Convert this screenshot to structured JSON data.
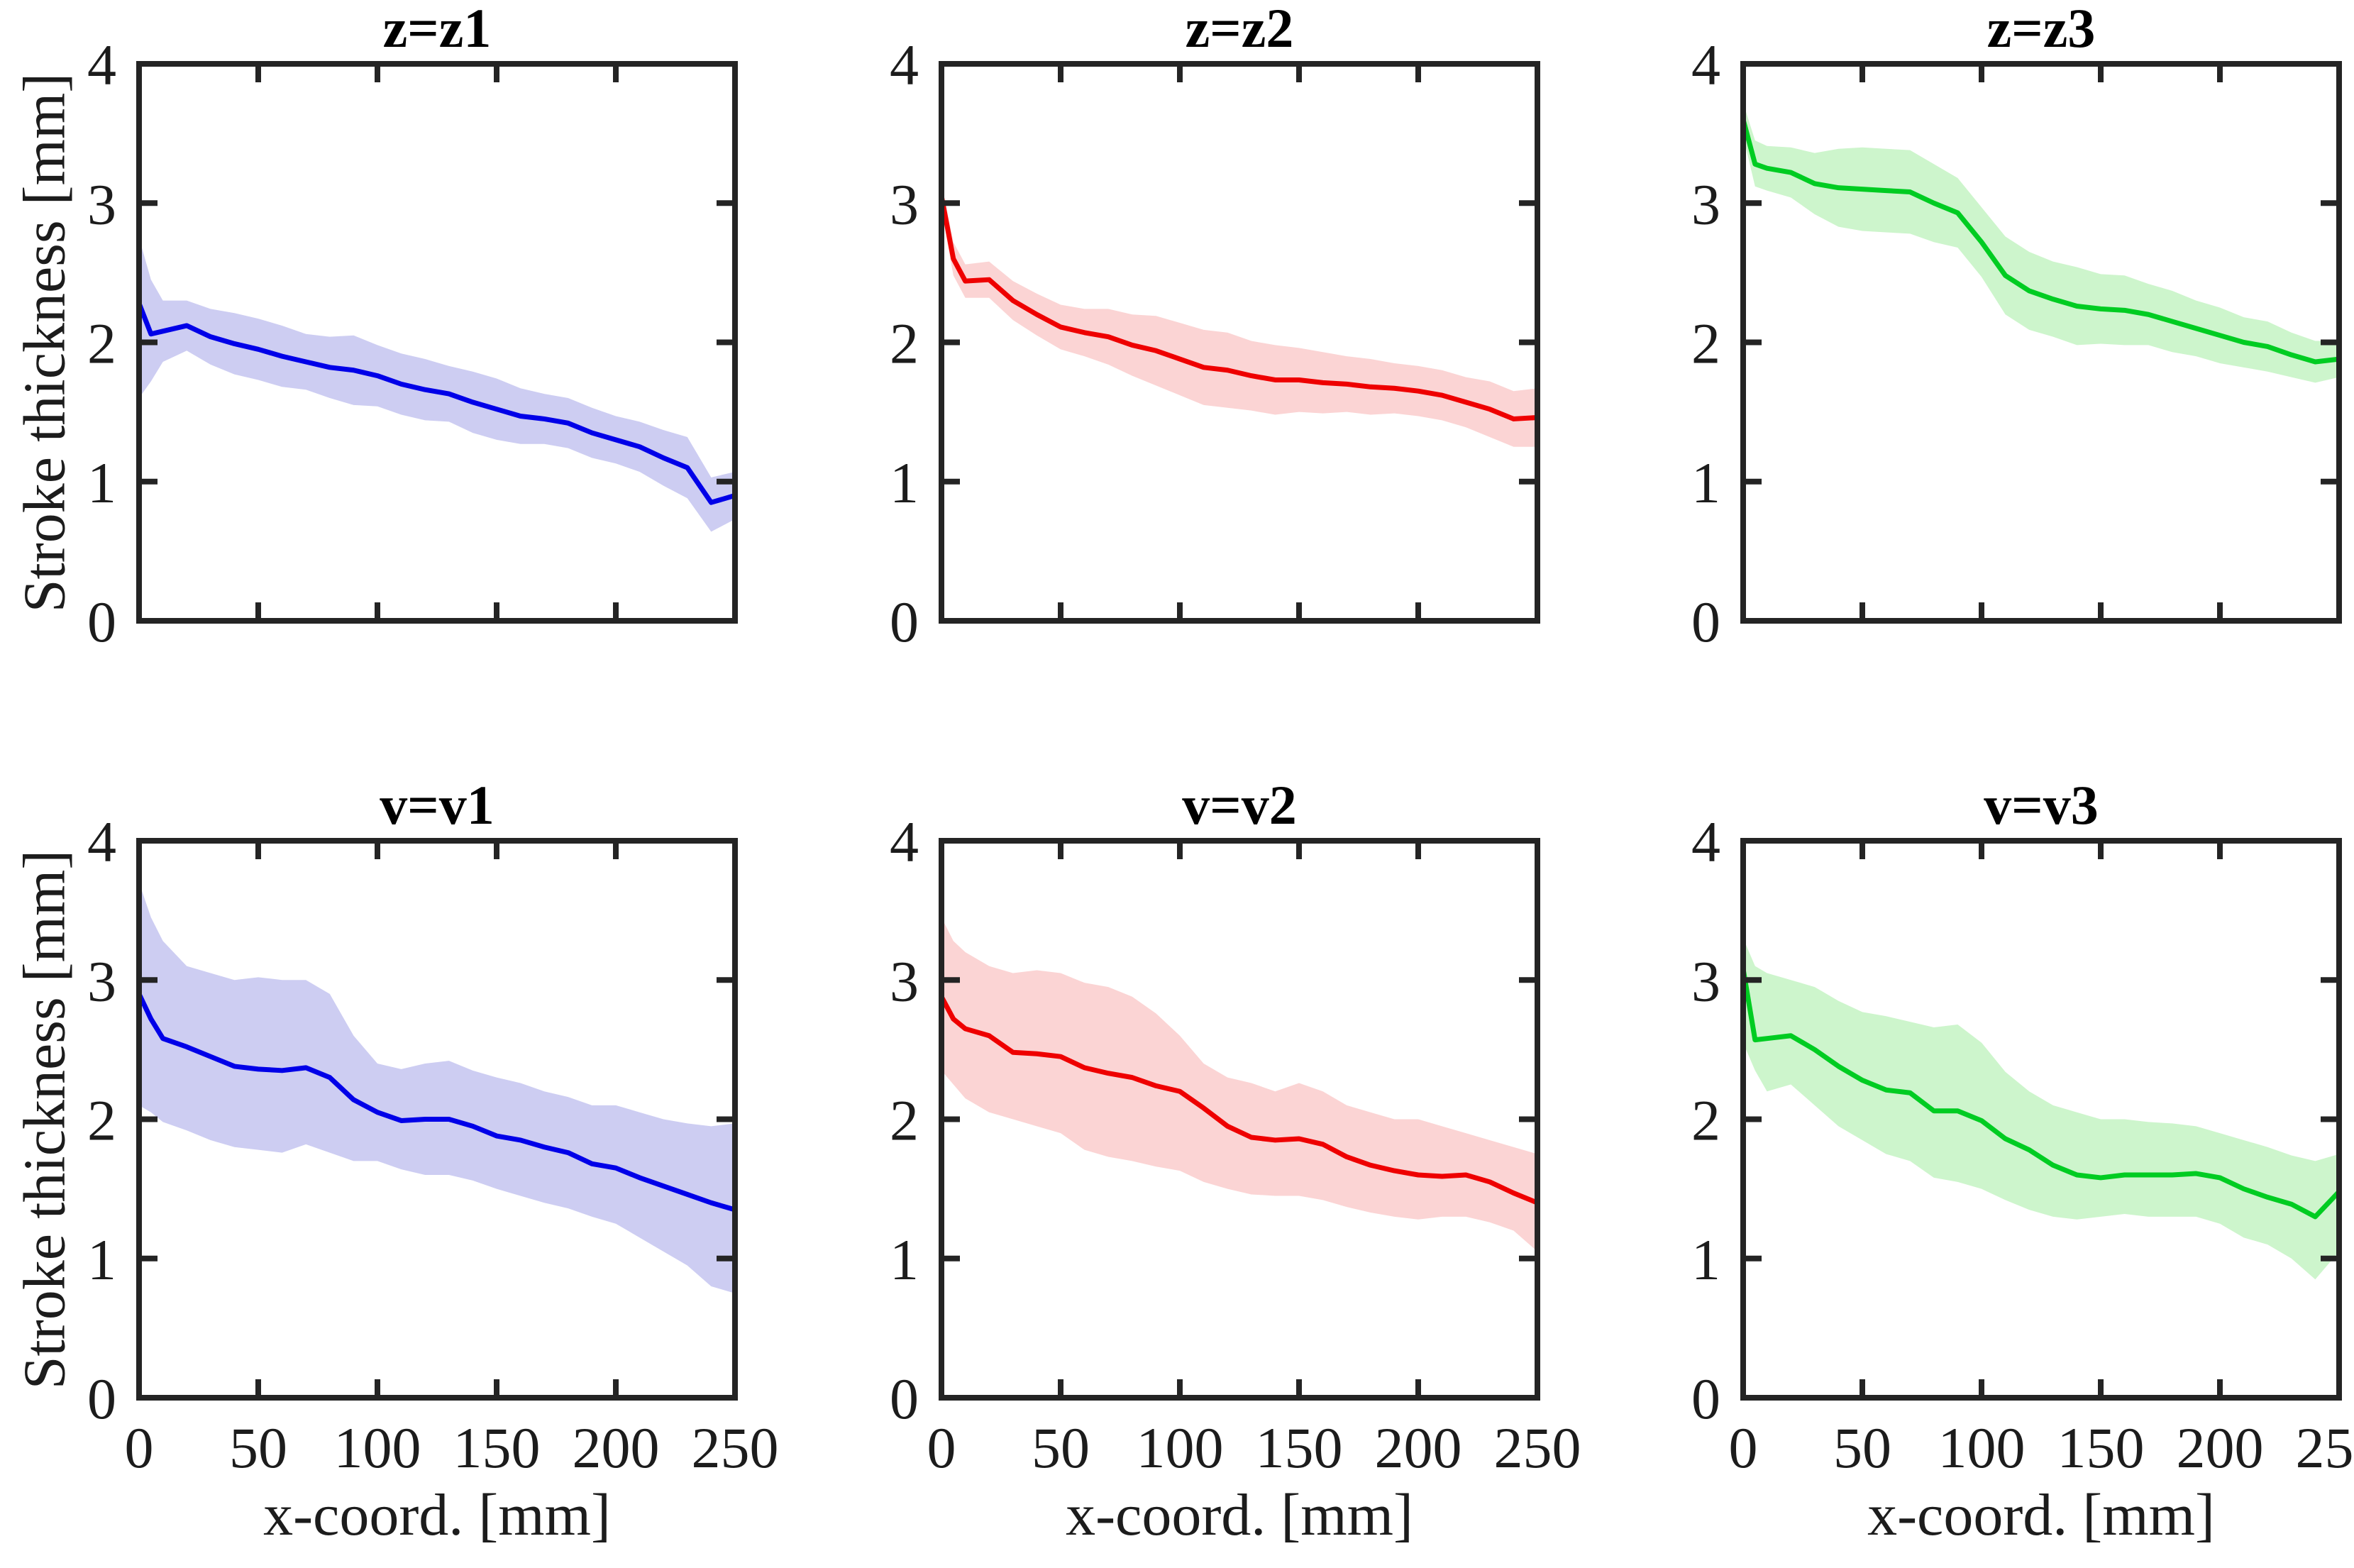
{
  "figure": {
    "background": "#ffffff",
    "axis_color": "#242424",
    "text_color": "#1c1c1c",
    "ylabel": "Stroke thickness [mm]",
    "xlabel": "x-coord. [mm]",
    "x_ticks": [
      0,
      50,
      100,
      150,
      200,
      250
    ],
    "y_ticks": [
      0,
      1,
      2,
      3,
      4
    ]
  },
  "chart_data": [
    {
      "type": "line",
      "title": "z=z1",
      "xlabel": "x-coord. [mm]",
      "ylabel": "Stroke thickness [mm]",
      "xlim": [
        0,
        250
      ],
      "ylim": [
        0,
        4
      ],
      "grid": false,
      "legend": "none",
      "color": "#0000E8",
      "band_color": "#CDCDF2",
      "x": [
        0,
        5,
        10,
        20,
        30,
        40,
        50,
        60,
        70,
        80,
        90,
        100,
        110,
        120,
        130,
        140,
        150,
        160,
        170,
        180,
        190,
        200,
        210,
        220,
        230,
        240,
        250
      ],
      "mean": [
        2.28,
        2.06,
        2.08,
        2.12,
        2.04,
        1.99,
        1.95,
        1.9,
        1.86,
        1.82,
        1.8,
        1.76,
        1.7,
        1.66,
        1.63,
        1.57,
        1.52,
        1.47,
        1.45,
        1.42,
        1.35,
        1.3,
        1.25,
        1.17,
        1.1,
        0.85,
        0.9
      ],
      "band_upper": [
        2.75,
        2.45,
        2.3,
        2.3,
        2.24,
        2.21,
        2.17,
        2.12,
        2.06,
        2.04,
        2.05,
        1.98,
        1.92,
        1.88,
        1.83,
        1.79,
        1.74,
        1.67,
        1.63,
        1.6,
        1.53,
        1.47,
        1.43,
        1.37,
        1.32,
        1.03,
        1.07
      ],
      "band_lower": [
        1.6,
        1.72,
        1.86,
        1.94,
        1.84,
        1.77,
        1.73,
        1.68,
        1.66,
        1.6,
        1.55,
        1.54,
        1.48,
        1.44,
        1.43,
        1.35,
        1.3,
        1.27,
        1.27,
        1.24,
        1.17,
        1.13,
        1.07,
        0.97,
        0.88,
        0.64,
        0.73
      ]
    },
    {
      "type": "line",
      "title": "z=z2",
      "xlabel": "x-coord. [mm]",
      "ylabel": "Stroke thickness [mm]",
      "xlim": [
        0,
        250
      ],
      "ylim": [
        0,
        4
      ],
      "grid": false,
      "legend": "none",
      "color": "#EE0000",
      "band_color": "#FBD4D4",
      "x": [
        0,
        5,
        10,
        20,
        30,
        40,
        50,
        60,
        70,
        80,
        90,
        100,
        110,
        120,
        130,
        140,
        150,
        160,
        170,
        180,
        190,
        200,
        210,
        220,
        230,
        240,
        250
      ],
      "mean": [
        3.05,
        2.6,
        2.44,
        2.45,
        2.3,
        2.2,
        2.11,
        2.07,
        2.04,
        1.98,
        1.94,
        1.88,
        1.82,
        1.8,
        1.76,
        1.73,
        1.73,
        1.71,
        1.7,
        1.68,
        1.67,
        1.65,
        1.62,
        1.57,
        1.52,
        1.45,
        1.46
      ],
      "band_upper": [
        3.15,
        2.72,
        2.56,
        2.58,
        2.44,
        2.35,
        2.27,
        2.24,
        2.24,
        2.2,
        2.19,
        2.14,
        2.09,
        2.07,
        2.01,
        1.98,
        1.96,
        1.93,
        1.9,
        1.88,
        1.85,
        1.83,
        1.8,
        1.75,
        1.72,
        1.65,
        1.67
      ],
      "band_lower": [
        2.95,
        2.48,
        2.32,
        2.32,
        2.16,
        2.05,
        1.95,
        1.9,
        1.84,
        1.76,
        1.69,
        1.62,
        1.55,
        1.53,
        1.51,
        1.48,
        1.5,
        1.49,
        1.5,
        1.48,
        1.49,
        1.47,
        1.44,
        1.39,
        1.32,
        1.25,
        1.25
      ]
    },
    {
      "type": "line",
      "title": "z=z3",
      "xlabel": "x-coord. [mm]",
      "ylabel": "Stroke thickness [mm]",
      "xlim": [
        0,
        250
      ],
      "ylim": [
        0,
        4
      ],
      "grid": false,
      "legend": "none",
      "color": "#00CC22",
      "band_color": "#CDF5CC",
      "x": [
        0,
        5,
        10,
        20,
        30,
        40,
        50,
        60,
        70,
        80,
        90,
        100,
        110,
        120,
        130,
        140,
        150,
        160,
        170,
        180,
        190,
        200,
        210,
        220,
        230,
        240,
        250
      ],
      "mean": [
        3.6,
        3.28,
        3.25,
        3.22,
        3.14,
        3.11,
        3.1,
        3.09,
        3.08,
        3.0,
        2.93,
        2.72,
        2.48,
        2.37,
        2.31,
        2.26,
        2.24,
        2.23,
        2.2,
        2.15,
        2.1,
        2.05,
        2.0,
        1.97,
        1.91,
        1.86,
        1.88
      ],
      "band_upper": [
        3.72,
        3.45,
        3.41,
        3.4,
        3.36,
        3.39,
        3.4,
        3.39,
        3.38,
        3.28,
        3.18,
        2.97,
        2.76,
        2.65,
        2.58,
        2.54,
        2.49,
        2.48,
        2.42,
        2.37,
        2.3,
        2.25,
        2.18,
        2.15,
        2.07,
        2.01,
        2.01
      ],
      "band_lower": [
        3.48,
        3.12,
        3.09,
        3.04,
        2.92,
        2.83,
        2.8,
        2.79,
        2.78,
        2.72,
        2.68,
        2.47,
        2.2,
        2.09,
        2.04,
        1.98,
        1.99,
        1.98,
        1.98,
        1.93,
        1.9,
        1.85,
        1.82,
        1.79,
        1.75,
        1.71,
        1.75
      ]
    },
    {
      "type": "line",
      "title": "v=v1",
      "xlabel": "x-coord. [mm]",
      "ylabel": "Stroke thickness [mm]",
      "xlim": [
        0,
        250
      ],
      "ylim": [
        0,
        4
      ],
      "grid": false,
      "legend": "none",
      "color": "#0000E8",
      "band_color": "#CDCDF2",
      "x": [
        0,
        5,
        10,
        20,
        30,
        40,
        50,
        60,
        70,
        80,
        90,
        100,
        110,
        120,
        130,
        140,
        150,
        160,
        170,
        180,
        190,
        200,
        210,
        220,
        230,
        240,
        250
      ],
      "mean": [
        2.9,
        2.72,
        2.58,
        2.52,
        2.45,
        2.38,
        2.36,
        2.35,
        2.37,
        2.3,
        2.14,
        2.05,
        1.99,
        2.0,
        2.0,
        1.95,
        1.88,
        1.85,
        1.8,
        1.76,
        1.68,
        1.65,
        1.58,
        1.52,
        1.46,
        1.4,
        1.35
      ],
      "band_upper": [
        3.7,
        3.45,
        3.28,
        3.1,
        3.05,
        3.0,
        3.02,
        3.0,
        3.0,
        2.9,
        2.6,
        2.4,
        2.36,
        2.4,
        2.42,
        2.35,
        2.3,
        2.26,
        2.2,
        2.16,
        2.1,
        2.1,
        2.05,
        2.0,
        1.97,
        1.95,
        1.97
      ],
      "band_lower": [
        2.1,
        2.05,
        1.98,
        1.92,
        1.85,
        1.8,
        1.78,
        1.76,
        1.82,
        1.76,
        1.7,
        1.7,
        1.64,
        1.6,
        1.6,
        1.56,
        1.5,
        1.45,
        1.4,
        1.36,
        1.3,
        1.25,
        1.15,
        1.05,
        0.95,
        0.8,
        0.75
      ]
    },
    {
      "type": "line",
      "title": "v=v2",
      "xlabel": "x-coord. [mm]",
      "ylabel": "Stroke thickness [mm]",
      "xlim": [
        0,
        250
      ],
      "ylim": [
        0,
        4
      ],
      "grid": false,
      "legend": "none",
      "color": "#EE0000",
      "band_color": "#FBD4D4",
      "x": [
        0,
        5,
        10,
        20,
        30,
        40,
        50,
        60,
        70,
        80,
        90,
        100,
        110,
        120,
        130,
        140,
        150,
        160,
        170,
        180,
        190,
        200,
        210,
        220,
        230,
        240,
        250
      ],
      "mean": [
        2.88,
        2.72,
        2.65,
        2.6,
        2.48,
        2.47,
        2.45,
        2.37,
        2.33,
        2.3,
        2.24,
        2.2,
        2.08,
        1.95,
        1.87,
        1.85,
        1.86,
        1.82,
        1.73,
        1.67,
        1.63,
        1.6,
        1.59,
        1.6,
        1.55,
        1.47,
        1.4
      ],
      "band_upper": [
        3.45,
        3.28,
        3.2,
        3.1,
        3.05,
        3.07,
        3.05,
        2.98,
        2.95,
        2.88,
        2.76,
        2.6,
        2.4,
        2.3,
        2.26,
        2.2,
        2.26,
        2.2,
        2.1,
        2.05,
        2.0,
        2.0,
        1.95,
        1.9,
        1.85,
        1.8,
        1.75
      ],
      "band_lower": [
        2.35,
        2.25,
        2.15,
        2.05,
        2.0,
        1.95,
        1.9,
        1.78,
        1.73,
        1.7,
        1.66,
        1.63,
        1.55,
        1.5,
        1.46,
        1.45,
        1.45,
        1.42,
        1.37,
        1.33,
        1.3,
        1.28,
        1.3,
        1.3,
        1.26,
        1.2,
        1.05
      ]
    },
    {
      "type": "line",
      "title": "v=v3",
      "xlabel": "x-coord. [mm]",
      "ylabel": "Stroke thickness [mm]",
      "xlim": [
        0,
        250
      ],
      "ylim": [
        0,
        4
      ],
      "grid": false,
      "legend": "none",
      "color": "#00CC22",
      "band_color": "#CDF5CC",
      "x": [
        0,
        5,
        10,
        20,
        30,
        40,
        50,
        60,
        70,
        80,
        90,
        100,
        110,
        120,
        130,
        140,
        150,
        160,
        170,
        180,
        190,
        200,
        210,
        220,
        230,
        240,
        250
      ],
      "mean": [
        3.08,
        2.57,
        2.58,
        2.6,
        2.5,
        2.38,
        2.28,
        2.21,
        2.19,
        2.06,
        2.06,
        1.99,
        1.86,
        1.78,
        1.67,
        1.6,
        1.58,
        1.6,
        1.6,
        1.6,
        1.61,
        1.58,
        1.5,
        1.44,
        1.39,
        1.3,
        1.48
      ],
      "band_upper": [
        3.3,
        3.1,
        3.05,
        3.0,
        2.95,
        2.85,
        2.77,
        2.74,
        2.7,
        2.66,
        2.68,
        2.55,
        2.34,
        2.2,
        2.1,
        2.05,
        2.0,
        2.0,
        1.98,
        1.97,
        1.95,
        1.9,
        1.85,
        1.8,
        1.74,
        1.7,
        1.75
      ],
      "band_lower": [
        2.55,
        2.35,
        2.2,
        2.25,
        2.1,
        1.95,
        1.85,
        1.75,
        1.7,
        1.58,
        1.55,
        1.5,
        1.42,
        1.35,
        1.3,
        1.28,
        1.3,
        1.32,
        1.3,
        1.3,
        1.3,
        1.25,
        1.15,
        1.1,
        1.0,
        0.85,
        1.05
      ]
    }
  ]
}
